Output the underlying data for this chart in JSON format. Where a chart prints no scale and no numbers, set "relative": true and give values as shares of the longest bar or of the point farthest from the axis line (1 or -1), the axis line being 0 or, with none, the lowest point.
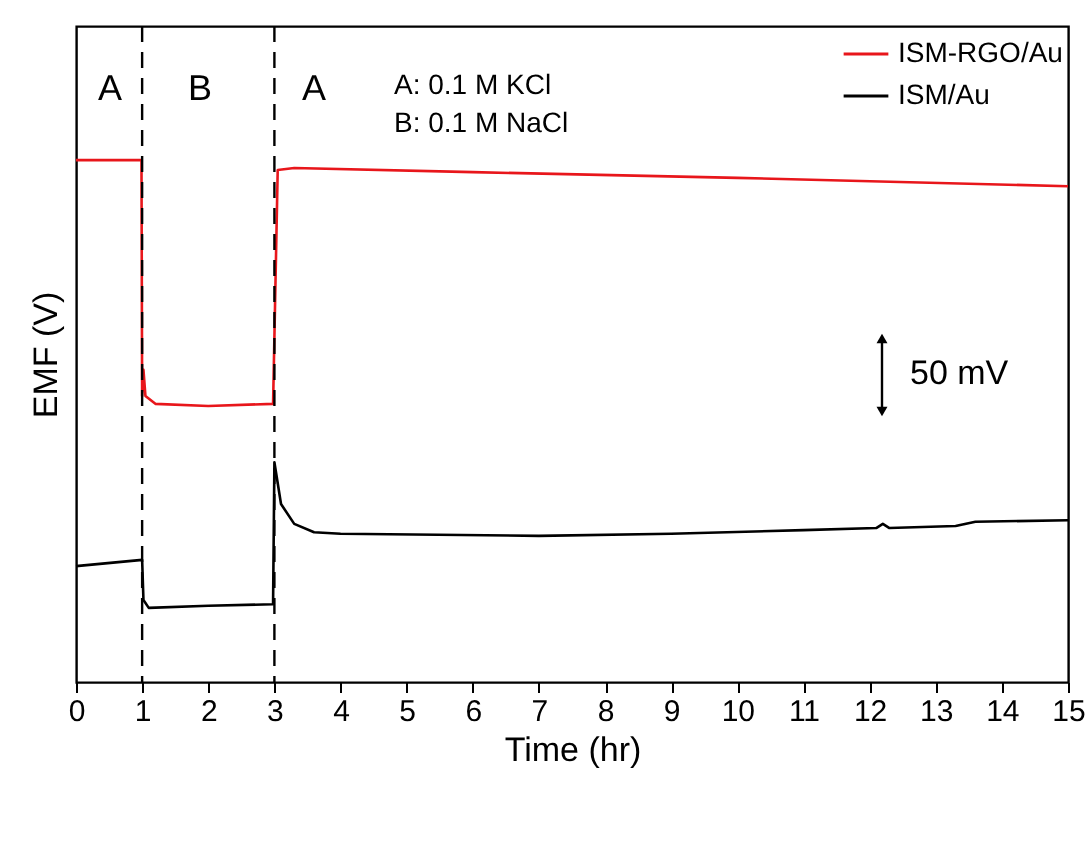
{
  "chart_data": {
    "type": "line",
    "relative": true,
    "xlabel": "Time (hr)",
    "ylabel": "EMF (V)",
    "xlim": [
      0,
      15
    ],
    "xticks": [
      0,
      1,
      2,
      3,
      4,
      5,
      6,
      7,
      8,
      9,
      10,
      11,
      12,
      13,
      14,
      15
    ],
    "grid": false,
    "legend": "top right",
    "tick_labels": "x",
    "line_style": "solid",
    "marker": "none",
    "series": [
      {
        "name": "ISM-RGO/Au",
        "color": "#e8161b",
        "x": [
          0,
          0.99,
          1.0,
          1.02,
          1.05,
          1.2,
          2,
          2.98,
          3.05,
          3.3,
          6,
          10,
          15
        ],
        "values": [
          1.0,
          1.0,
          0.548,
          0.598,
          0.548,
          0.533,
          0.529,
          0.533,
          0.981,
          0.985,
          0.977,
          0.966,
          0.95
        ]
      },
      {
        "name": "ISM/Au",
        "color": "#000000",
        "x": [
          0,
          1,
          1.02,
          1.1,
          2,
          2.98,
          3.0,
          3.1,
          3.3,
          3.6,
          4,
          7,
          9,
          11,
          12.1,
          12.2,
          12.3,
          13.3,
          13.6,
          15
        ],
        "values": [
          0.222,
          0.234,
          0.157,
          0.142,
          0.146,
          0.149,
          0.421,
          0.341,
          0.303,
          0.287,
          0.284,
          0.28,
          0.284,
          0.291,
          0.295,
          0.303,
          0.295,
          0.299,
          0.307,
          0.31
        ]
      }
    ],
    "ref_lines": [
      {
        "axis": "x",
        "value": 1,
        "color": "#000000",
        "line_style": "dashed"
      },
      {
        "axis": "x",
        "value": 3,
        "color": "#000000",
        "line_style": "dashed"
      }
    ],
    "annotations": [
      "A",
      "B",
      "A",
      "A: 0.1 M KCl",
      "B: 0.1 M NaCl",
      "50 mV"
    ]
  }
}
